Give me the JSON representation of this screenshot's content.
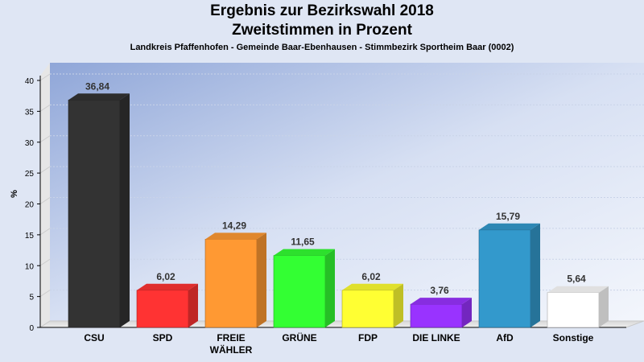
{
  "chart_data": {
    "type": "bar",
    "title": "Ergebnis zur Bezirkswahl 2018",
    "subtitle": "Zweitstimmen in Prozent",
    "caption": "Landkreis Pfaffenhofen - Gemeinde Baar-Ebenhausen - Stimmbezirk Sportheim Baar (0002)",
    "ylabel": "%",
    "xlabel": "",
    "ylim": [
      0,
      40
    ],
    "yticks": [
      0,
      5,
      10,
      15,
      20,
      25,
      30,
      35,
      40
    ],
    "grid": true,
    "categories": [
      "CSU",
      "SPD",
      "FREIE WÄHLER",
      "GRÜNE",
      "FDP",
      "DIE LINKE",
      "AfD",
      "Sonstige"
    ],
    "category_lines": [
      [
        "CSU"
      ],
      [
        "SPD"
      ],
      [
        "FREIE",
        "WÄHLER"
      ],
      [
        "GRÜNE"
      ],
      [
        "FDP"
      ],
      [
        "DIE LINKE"
      ],
      [
        "AfD"
      ],
      [
        "Sonstige"
      ]
    ],
    "values": [
      36.84,
      6.02,
      14.29,
      11.65,
      6.02,
      3.76,
      15.79,
      5.64
    ],
    "value_labels": [
      "36,84",
      "6,02",
      "14,29",
      "11,65",
      "6,02",
      "3,76",
      "15,79",
      "5,64"
    ],
    "colors": [
      "#333333",
      "#ff3333",
      "#ff9933",
      "#33ff33",
      "#ffff33",
      "#9933ff",
      "#3399cc",
      "#ffffff"
    ]
  }
}
